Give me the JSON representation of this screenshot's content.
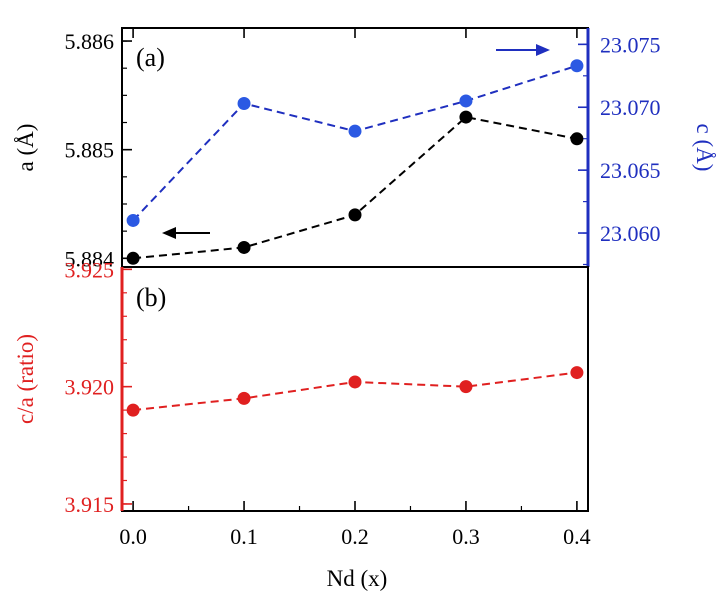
{
  "colors": {
    "black": "#000000",
    "blue": "#1f2fbf",
    "blue_point": "#2b59e3",
    "red": "#e02020",
    "frame": "#000000"
  },
  "chart_data": [
    {
      "panel": "(a)",
      "type": "line",
      "x": [
        0.0,
        0.1,
        0.2,
        0.3,
        0.4
      ],
      "xlim": [
        -0.01,
        0.41
      ],
      "series": [
        {
          "name": "a",
          "axis": "left",
          "color": "#000000",
          "values": [
            5.884,
            5.8841,
            5.8844,
            5.8853,
            5.8851
          ]
        },
        {
          "name": "c",
          "axis": "right",
          "color": "#2b59e3",
          "values": [
            23.061,
            23.0703,
            23.0681,
            23.0705,
            23.0733
          ]
        }
      ],
      "ylabel_left": "a (Å)",
      "ylabel_right": "c (Å)",
      "ylim_left": [
        5.88392,
        5.88612
      ],
      "ylim_right": [
        23.0573,
        23.0763
      ],
      "yticks_left": [
        "5.884",
        "5.885",
        "5.886"
      ],
      "yticks_left_values": [
        5.884,
        5.885,
        5.886
      ],
      "yticks_right": [
        "23.060",
        "23.065",
        "23.070",
        "23.075"
      ],
      "yticks_right_values": [
        23.06,
        23.065,
        23.07,
        23.075
      ],
      "annotations": [
        "left arrow points to a axis",
        "right arrow points to c axis"
      ]
    },
    {
      "panel": "(b)",
      "type": "line",
      "x": [
        0.0,
        0.1,
        0.2,
        0.3,
        0.4
      ],
      "xlim": [
        -0.01,
        0.41
      ],
      "series": [
        {
          "name": "c/a",
          "axis": "left",
          "color": "#e02020",
          "values": [
            3.919,
            3.9195,
            3.9202,
            3.92,
            3.9206
          ]
        }
      ],
      "ylabel_left": "c/a (ratio)",
      "ylim_left": [
        3.9147,
        3.9251
      ],
      "yticks_left": [
        "3.915",
        "3.920",
        "3.925"
      ],
      "yticks_left_values": [
        3.915,
        3.92,
        3.925
      ],
      "xlabel": "Nd (x)",
      "xticks": [
        "0.0",
        "0.1",
        "0.2",
        "0.3",
        "0.4"
      ],
      "xticks_values": [
        0.0,
        0.1,
        0.2,
        0.3,
        0.4
      ]
    }
  ]
}
